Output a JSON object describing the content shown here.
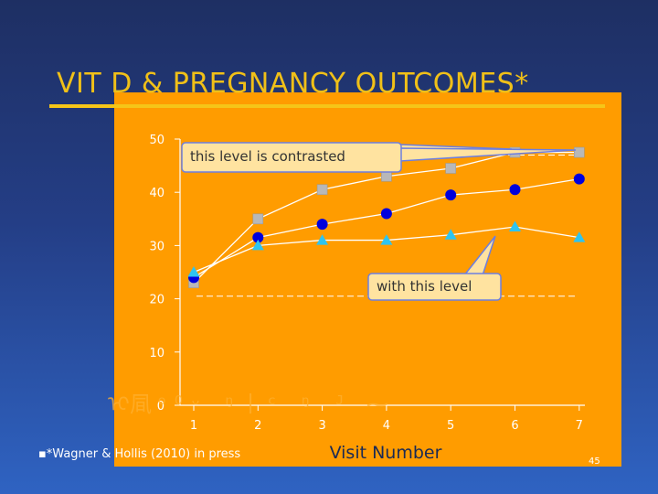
{
  "slide": {
    "title": "VIT D & PREGNANCY OUTCOMES*",
    "footnote": "▪*Wagner & Hollis (2010) in press",
    "slide_number": "45",
    "overlay_text": "ᢈ凬ᵒᴼᵕ ᵑ丨ᶜ ᵑ ᴶ ⁓",
    "colors": {
      "title": "#f0c018",
      "panel": "#ff9c00",
      "callout_fill": "#ffe3a0",
      "callout_border": "#6d7fe0"
    }
  },
  "callouts": {
    "top": "this level is contrasted",
    "bottom": "with this level"
  },
  "chart_data": {
    "type": "line",
    "x": [
      1,
      2,
      3,
      4,
      5,
      6,
      7
    ],
    "xlabel": "Visit Number",
    "ylabel": "",
    "ylim": [
      0,
      50
    ],
    "yticks": [
      0,
      10,
      20,
      30,
      40,
      50
    ],
    "grid": false,
    "reference_lines": [
      47,
      20.5
    ],
    "series": [
      {
        "marker": "square",
        "color": "#b8b8b8",
        "values": [
          23,
          35,
          40.5,
          43,
          44.5,
          47.5,
          47.5
        ]
      },
      {
        "marker": "circle",
        "color": "#0000dd",
        "values": [
          24,
          31.5,
          34,
          36,
          39.5,
          40.5,
          42.5
        ]
      },
      {
        "marker": "triangle",
        "color": "#2ec4f0",
        "values": [
          25,
          30,
          31,
          31,
          32,
          33.5,
          31.5
        ]
      }
    ]
  }
}
